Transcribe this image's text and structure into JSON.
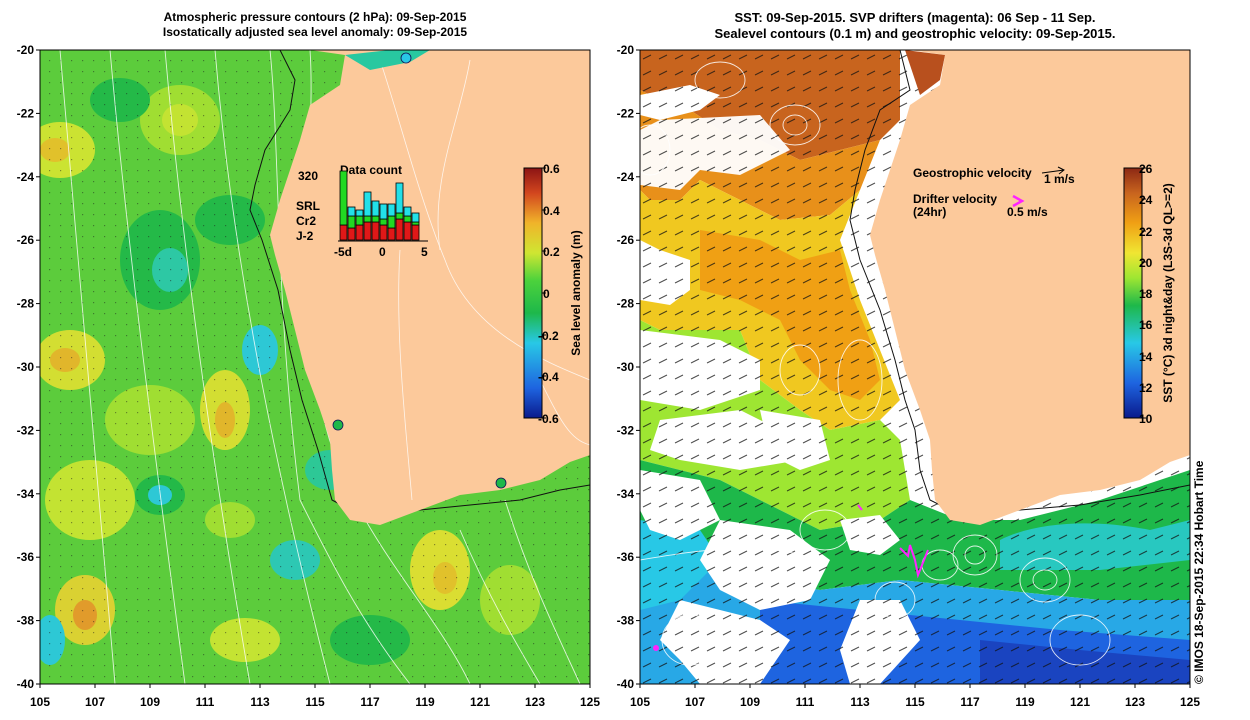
{
  "titles": {
    "left_line1": "Atmospheric pressure contours (2 hPa): 09-Sep-2015",
    "left_line2": "Isostatically adjusted sea level anomaly: 09-Sep-2015",
    "right_line1": "SST: 09-Sep-2015. SVP drifters (magenta): 06 Sep - 11 Sep.",
    "right_line2": "Sealevel contours (0.1 m) and geostrophic velocity: 09-Sep-2015."
  },
  "axes": {
    "lon_ticks": [
      "105",
      "107",
      "109",
      "111",
      "113",
      "115",
      "117",
      "119",
      "121",
      "123",
      "125"
    ],
    "lat_ticks": [
      "-20",
      "-22",
      "-24",
      "-26",
      "-28",
      "-30",
      "-32",
      "-34",
      "-36",
      "-38",
      "-40"
    ]
  },
  "left_colorbar": {
    "label": "Sea level anomaly (m)",
    "ticks": [
      "0.6",
      "0.4",
      "0.2",
      "0",
      "-0.2",
      "-0.4",
      "-0.6"
    ]
  },
  "right_colorbar": {
    "label": "SST (°C) 3d night&day (L3S-3d QL>=2)",
    "ticks": [
      "26",
      "24",
      "22",
      "20",
      "18",
      "16",
      "14",
      "12",
      "10"
    ]
  },
  "data_count": {
    "title": "Data count",
    "max_label": "320",
    "x_left": "-5d",
    "x_mid": "0",
    "x_right": "5",
    "legend": [
      "SRL",
      "Cr2",
      "J-2"
    ],
    "legend_colors": [
      "#22e0e8",
      "#22d822",
      "#e01818"
    ],
    "bars": [
      {
        "j2": 0.25,
        "cr2": 0.9,
        "srl": 0.0
      },
      {
        "j2": 0.2,
        "cr2": 0.2,
        "srl": 0.15
      },
      {
        "j2": 0.25,
        "cr2": 0.15,
        "srl": 0.1
      },
      {
        "j2": 0.3,
        "cr2": 0.1,
        "srl": 0.4
      },
      {
        "j2": 0.3,
        "cr2": 0.1,
        "srl": 0.25
      },
      {
        "j2": 0.25,
        "cr2": 0.1,
        "srl": 0.25
      },
      {
        "j2": 0.2,
        "cr2": 0.2,
        "srl": 0.2
      },
      {
        "j2": 0.35,
        "cr2": 0.1,
        "srl": 0.5
      },
      {
        "j2": 0.3,
        "cr2": 0.1,
        "srl": 0.15
      },
      {
        "j2": 0.25,
        "cr2": 0.05,
        "srl": 0.15
      }
    ]
  },
  "legend_right": {
    "geo_label": "Geostrophic velocity",
    "geo_scale": "1 m/s",
    "drifter_label": "Drifter velocity",
    "drifter_sub": "(24hr)",
    "drifter_scale": "0.5 m/s"
  },
  "colors": {
    "land": "#fcc99b",
    "sla_scale": [
      "#0a1a8c",
      "#1e64e0",
      "#28c8e6",
      "#1eb84a",
      "#4cd23c",
      "#cfe632",
      "#f0b42a",
      "#d2461e",
      "#8c1414"
    ],
    "sst_scale": [
      "#0a1a8c",
      "#1e64e0",
      "#28c8e6",
      "#1eb84a",
      "#9ee632",
      "#f0e632",
      "#f0a014",
      "#c8641e",
      "#8c2814"
    ],
    "drifter": "#ff22ff"
  },
  "copyright": "© IMOS 18-Sep-2015 22:34 Hobart Time"
}
